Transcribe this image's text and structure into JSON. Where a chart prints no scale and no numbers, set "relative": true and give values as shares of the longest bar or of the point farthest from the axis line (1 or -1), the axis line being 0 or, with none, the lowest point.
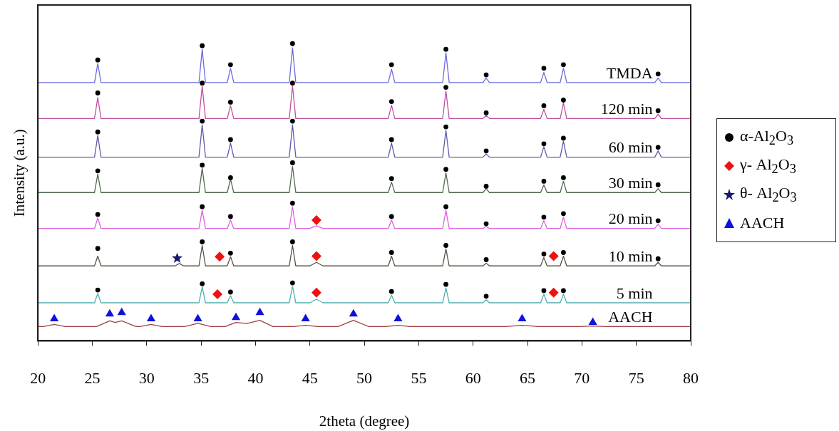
{
  "chart_data": {
    "type": "line",
    "relative": true,
    "xlabel": "2theta (degree)",
    "ylabel": "Intensity (a.u.)",
    "xlim": [
      20,
      80
    ],
    "xticks": [
      20,
      25,
      30,
      35,
      40,
      45,
      50,
      55,
      60,
      65,
      70,
      75,
      80
    ],
    "legend": "right",
    "series": [
      {
        "name": "TMDA",
        "color": "#6a6ae0",
        "x": [
          20,
          25.2,
          25.5,
          25.8,
          34.8,
          35.1,
          35.4,
          37.4,
          37.7,
          38.0,
          43.1,
          43.4,
          43.7,
          52.2,
          52.5,
          52.8,
          57.2,
          57.5,
          57.8,
          60.9,
          61.2,
          61.5,
          66.2,
          66.5,
          66.8,
          68.0,
          68.3,
          68.6,
          76.7,
          77.0,
          77.3,
          80
        ],
        "values": [
          0.869,
          0.869,
          0.933,
          0.869,
          0.869,
          0.981,
          0.869,
          0.869,
          0.917,
          0.869,
          0.869,
          0.986,
          0.869,
          0.869,
          0.914,
          0.869,
          0.869,
          0.969,
          0.869,
          0.869,
          0.884,
          0.869,
          0.869,
          0.903,
          0.869,
          0.869,
          0.917,
          0.869,
          0.869,
          0.884,
          0.869,
          0.869
        ]
      },
      {
        "name": "120 min",
        "color": "#c050a0",
        "x": [
          20,
          25.2,
          25.5,
          25.8,
          34.8,
          35.1,
          35.4,
          37.4,
          37.7,
          38.0,
          43.1,
          43.4,
          43.7,
          52.2,
          52.5,
          52.8,
          57.2,
          57.5,
          57.8,
          60.9,
          61.2,
          61.5,
          66.2,
          66.5,
          66.8,
          68.0,
          68.3,
          68.6,
          76.7,
          77.0,
          77.3,
          80
        ],
        "values": [
          0.748,
          0.748,
          0.819,
          0.748,
          0.748,
          0.857,
          0.748,
          0.748,
          0.791,
          0.748,
          0.748,
          0.857,
          0.748,
          0.748,
          0.793,
          0.748,
          0.748,
          0.841,
          0.748,
          0.748,
          0.758,
          0.748,
          0.748,
          0.779,
          0.748,
          0.748,
          0.8,
          0.748,
          0.748,
          0.762,
          0.748,
          0.748
        ]
      },
      {
        "name": "60 min",
        "color": "#5c5ca8",
        "x": [
          20,
          25.2,
          25.5,
          25.8,
          34.8,
          35.1,
          35.4,
          37.4,
          37.7,
          38.0,
          43.1,
          43.4,
          43.7,
          52.2,
          52.5,
          52.8,
          57.2,
          57.5,
          57.8,
          60.9,
          61.2,
          61.5,
          66.2,
          66.5,
          66.8,
          68.0,
          68.3,
          68.6,
          76.7,
          77.0,
          77.3,
          80
        ],
        "values": [
          0.618,
          0.618,
          0.691,
          0.618,
          0.618,
          0.727,
          0.618,
          0.618,
          0.665,
          0.618,
          0.618,
          0.727,
          0.618,
          0.618,
          0.665,
          0.618,
          0.618,
          0.708,
          0.618,
          0.618,
          0.629,
          0.618,
          0.618,
          0.653,
          0.618,
          0.618,
          0.672,
          0.618,
          0.618,
          0.639,
          0.618,
          0.618
        ]
      },
      {
        "name": "30 min",
        "color": "#4f6a4f",
        "x": [
          20,
          25.2,
          25.5,
          25.8,
          34.8,
          35.1,
          35.4,
          37.4,
          37.7,
          38.0,
          43.1,
          43.4,
          43.7,
          52.2,
          52.5,
          52.8,
          57.2,
          57.5,
          57.8,
          60.9,
          61.2,
          61.5,
          66.2,
          66.5,
          66.8,
          68.0,
          68.3,
          68.6,
          76.7,
          77.0,
          77.3,
          80
        ],
        "values": [
          0.499,
          0.499,
          0.561,
          0.499,
          0.499,
          0.58,
          0.499,
          0.499,
          0.544,
          0.499,
          0.499,
          0.587,
          0.499,
          0.499,
          0.534,
          0.499,
          0.499,
          0.565,
          0.499,
          0.499,
          0.512,
          0.499,
          0.499,
          0.525,
          0.499,
          0.499,
          0.537,
          0.499,
          0.499,
          0.512,
          0.499,
          0.499
        ]
      },
      {
        "name": "20 min",
        "color": "#e060e0",
        "x": [
          20,
          25.2,
          25.5,
          25.8,
          34.8,
          35.1,
          35.4,
          37.4,
          37.7,
          38.0,
          43.1,
          43.4,
          43.7,
          45.0,
          45.6,
          46.2,
          52.2,
          52.5,
          52.8,
          57.2,
          57.5,
          57.8,
          60.9,
          61.2,
          61.5,
          66.2,
          66.5,
          66.8,
          68.0,
          68.3,
          68.6,
          76.7,
          77.0,
          77.3,
          80
        ],
        "values": [
          0.378,
          0.378,
          0.413,
          0.378,
          0.378,
          0.439,
          0.378,
          0.378,
          0.406,
          0.378,
          0.378,
          0.451,
          0.378,
          0.378,
          0.387,
          0.378,
          0.378,
          0.406,
          0.378,
          0.378,
          0.439,
          0.378,
          0.378,
          0.385,
          0.378,
          0.378,
          0.404,
          0.378,
          0.378,
          0.416,
          0.378,
          0.378,
          0.392,
          0.378,
          0.378
        ]
      },
      {
        "name": "10 min",
        "color": "#555544",
        "x": [
          20,
          25.2,
          25.5,
          25.8,
          32.6,
          33.0,
          33.4,
          34.8,
          35.1,
          35.4,
          37.4,
          37.7,
          38.0,
          43.1,
          43.4,
          43.7,
          45.0,
          45.6,
          46.2,
          52.2,
          52.5,
          52.8,
          57.2,
          57.5,
          57.8,
          60.9,
          61.2,
          61.5,
          66.2,
          66.5,
          66.8,
          68.0,
          68.3,
          68.6,
          76.7,
          77.0,
          77.3,
          80
        ],
        "values": [
          0.252,
          0.252,
          0.285,
          0.252,
          0.252,
          0.26,
          0.252,
          0.252,
          0.321,
          0.252,
          0.252,
          0.283,
          0.252,
          0.252,
          0.321,
          0.252,
          0.252,
          0.264,
          0.252,
          0.252,
          0.285,
          0.252,
          0.252,
          0.309,
          0.252,
          0.252,
          0.261,
          0.252,
          0.252,
          0.28,
          0.252,
          0.252,
          0.285,
          0.252,
          0.252,
          0.264,
          0.252,
          0.252
        ]
      },
      {
        "name": "5 min",
        "color": "#50b0b0",
        "x": [
          20,
          25.2,
          25.5,
          25.8,
          34.8,
          35.1,
          35.4,
          37.4,
          37.7,
          38.0,
          43.1,
          43.4,
          43.7,
          45.0,
          45.6,
          46.2,
          52.2,
          52.5,
          52.8,
          57.2,
          57.5,
          57.8,
          60.9,
          61.2,
          61.5,
          66.2,
          66.5,
          66.8,
          68.0,
          68.3,
          68.6,
          80
        ],
        "values": [
          0.128,
          0.128,
          0.159,
          0.128,
          0.128,
          0.181,
          0.128,
          0.128,
          0.152,
          0.128,
          0.128,
          0.183,
          0.128,
          0.128,
          0.14,
          0.128,
          0.128,
          0.154,
          0.128,
          0.128,
          0.178,
          0.128,
          0.128,
          0.138,
          0.128,
          0.128,
          0.157,
          0.128,
          0.128,
          0.157,
          0.128,
          0.128
        ]
      },
      {
        "name": "AACH",
        "color": "#a04040",
        "x": [
          20,
          20.5,
          21.5,
          22.5,
          25.4,
          26.6,
          27.1,
          27.7,
          29.0,
          29.4,
          30.4,
          31.4,
          33.5,
          34.7,
          35.9,
          37.2,
          38.2,
          39.2,
          40.4,
          41.6,
          43.5,
          44.6,
          45.7,
          47.6,
          49.0,
          50.4,
          52.0,
          53.1,
          54.2,
          63.0,
          64.5,
          66.0,
          69.8,
          71.0,
          72.2,
          80
        ],
        "values": [
          0.048,
          0.048,
          0.055,
          0.048,
          0.048,
          0.067,
          0.062,
          0.067,
          0.048,
          0.048,
          0.055,
          0.048,
          0.048,
          0.059,
          0.048,
          0.048,
          0.062,
          0.058,
          0.069,
          0.048,
          0.048,
          0.052,
          0.048,
          0.048,
          0.069,
          0.048,
          0.048,
          0.052,
          0.048,
          0.048,
          0.052,
          0.048,
          0.048,
          0.05,
          0.048,
          0.048
        ]
      },
      {
        "name": "α-Al$_{2}$O$_{3}$",
        "type": "scatter",
        "marker": "circle",
        "color": "#000000",
        "x": [
          25.5,
          35.1,
          37.7,
          43.4,
          52.5,
          57.5,
          61.2,
          66.5,
          68.3,
          77.0,
          25.5,
          35.1,
          37.7,
          43.4,
          52.5,
          57.5,
          61.2,
          66.5,
          68.3,
          77.0,
          25.5,
          35.1,
          37.7,
          43.4,
          52.5,
          57.5,
          61.2,
          66.5,
          68.3,
          77.0,
          25.5,
          35.1,
          37.7,
          43.4,
          52.5,
          57.5,
          61.2,
          66.5,
          68.3,
          77.0,
          25.5,
          35.1,
          37.7,
          43.4,
          52.5,
          57.5,
          61.2,
          66.5,
          68.3,
          77.0,
          25.5,
          35.1,
          37.7,
          43.4,
          52.5,
          57.5,
          61.2,
          66.5,
          68.3,
          77.0,
          25.5,
          35.1,
          37.7,
          43.4,
          52.5,
          57.5,
          61.2,
          66.5,
          68.3
        ],
        "values": [
          0.945,
          0.993,
          0.929,
          1.0,
          0.929,
          0.981,
          0.895,
          0.917,
          0.929,
          0.898,
          0.834,
          0.867,
          0.803,
          0.867,
          0.805,
          0.853,
          0.767,
          0.791,
          0.81,
          0.774,
          0.703,
          0.739,
          0.677,
          0.739,
          0.677,
          0.72,
          0.639,
          0.663,
          0.682,
          0.651,
          0.572,
          0.591,
          0.549,
          0.599,
          0.546,
          0.577,
          0.52,
          0.537,
          0.549,
          0.525,
          0.425,
          0.451,
          0.418,
          0.463,
          0.418,
          0.451,
          0.394,
          0.416,
          0.428,
          0.404,
          0.311,
          0.333,
          0.295,
          0.333,
          0.297,
          0.321,
          0.273,
          0.292,
          0.297,
          0.276,
          0.171,
          0.192,
          0.164,
          0.195,
          0.166,
          0.19,
          0.15,
          0.169,
          0.169
        ]
      },
      {
        "name": "γ- Al$_{2}$O$_{3}$",
        "type": "scatter",
        "marker": "diamond",
        "color": "#ee1111",
        "x": [
          45.6,
          36.7,
          45.6,
          67.4,
          36.5,
          45.6,
          67.4
        ],
        "values": [
          0.406,
          0.283,
          0.285,
          0.285,
          0.157,
          0.162,
          0.162
        ]
      },
      {
        "name": "θ- Al$_{2}$O$_{3}$",
        "type": "scatter",
        "marker": "star",
        "color": "#1a1a6e",
        "x": [
          32.8
        ],
        "values": [
          0.278
        ]
      },
      {
        "name": "AACH",
        "type": "scatter",
        "marker": "triangle",
        "color": "#1010dd",
        "x": [
          21.5,
          26.6,
          27.7,
          30.4,
          34.7,
          38.2,
          40.4,
          44.6,
          49.0,
          53.1,
          64.5,
          71.0
        ],
        "values": [
          0.074,
          0.09,
          0.095,
          0.074,
          0.074,
          0.078,
          0.095,
          0.074,
          0.09,
          0.074,
          0.074,
          0.062
        ]
      }
    ]
  }
}
